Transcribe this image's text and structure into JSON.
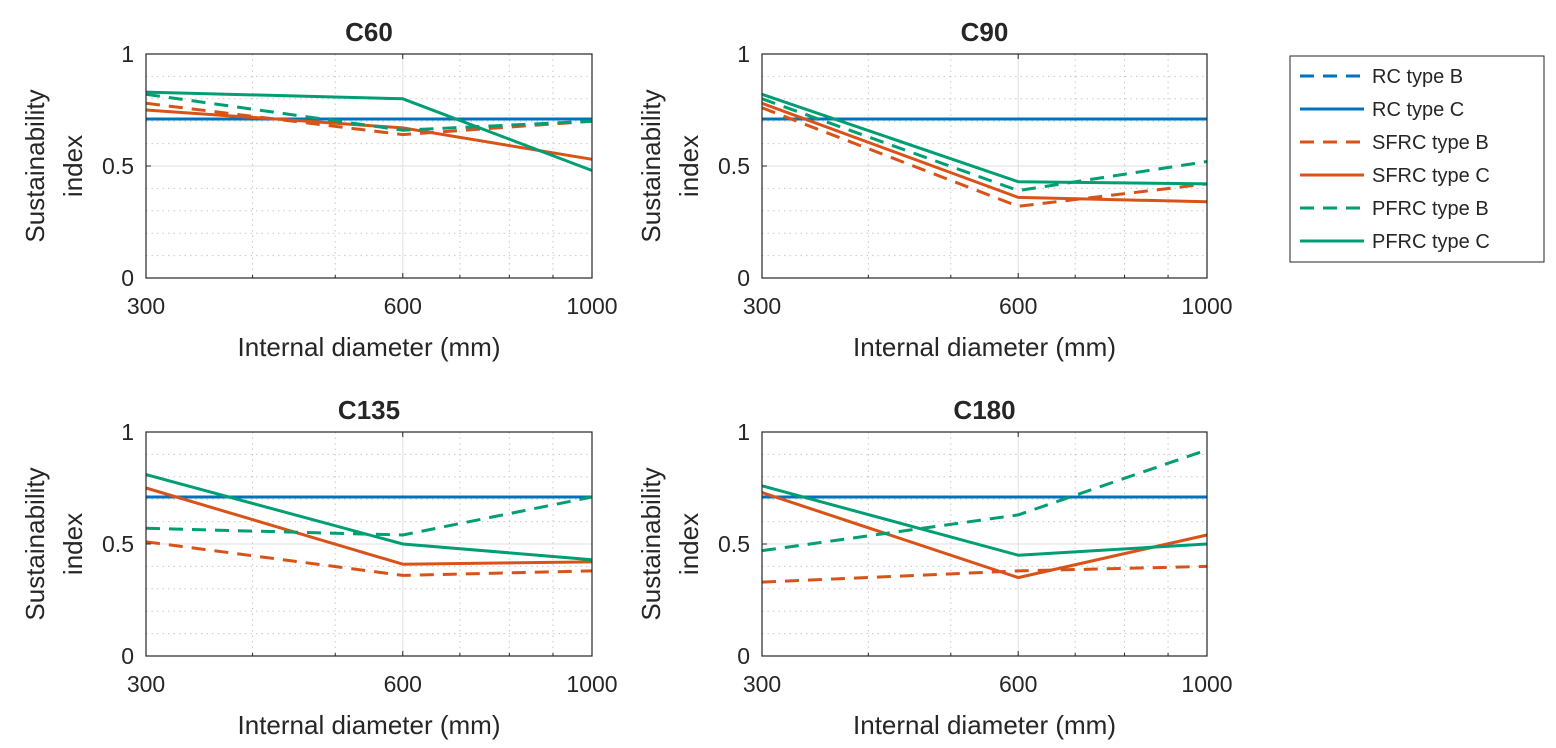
{
  "chart_data": [
    {
      "type": "line",
      "title": "C60",
      "xlabel": "Internal diameter (mm)",
      "ylabel": [
        "Sustainability",
        "index"
      ],
      "x": [
        300,
        600,
        1000
      ],
      "xlim": [
        300,
        1000
      ],
      "ylim": [
        0,
        1
      ],
      "xticks": [
        "300",
        "600",
        "1000"
      ],
      "yticks": [
        "0",
        "0.5",
        "1"
      ],
      "grid": true,
      "series": [
        {
          "name": "RC type B",
          "values": [
            0.71,
            0.71,
            0.71
          ]
        },
        {
          "name": "RC type C",
          "values": [
            0.71,
            0.71,
            0.71
          ]
        },
        {
          "name": "SFRC type B",
          "values": [
            0.78,
            0.64,
            0.7
          ]
        },
        {
          "name": "SFRC type C",
          "values": [
            0.75,
            0.67,
            0.53
          ]
        },
        {
          "name": "PFRC type B",
          "values": [
            0.82,
            0.66,
            0.7
          ]
        },
        {
          "name": "PFRC type C",
          "values": [
            0.83,
            0.8,
            0.48
          ]
        }
      ]
    },
    {
      "type": "line",
      "title": "C90",
      "xlabel": "Internal diameter (mm)",
      "ylabel": [
        "Sustainability",
        "index"
      ],
      "x": [
        300,
        600,
        1000
      ],
      "xlim": [
        300,
        1000
      ],
      "ylim": [
        0,
        1
      ],
      "xticks": [
        "300",
        "600",
        "1000"
      ],
      "yticks": [
        "0",
        "0.5",
        "1"
      ],
      "grid": true,
      "series": [
        {
          "name": "RC type B",
          "values": [
            0.71,
            0.71,
            0.71
          ]
        },
        {
          "name": "RC type C",
          "values": [
            0.71,
            0.71,
            0.71
          ]
        },
        {
          "name": "SFRC type B",
          "values": [
            0.76,
            0.32,
            0.42
          ]
        },
        {
          "name": "SFRC type C",
          "values": [
            0.78,
            0.36,
            0.34
          ]
        },
        {
          "name": "PFRC type B",
          "values": [
            0.8,
            0.39,
            0.52
          ]
        },
        {
          "name": "PFRC type C",
          "values": [
            0.82,
            0.43,
            0.42
          ]
        }
      ]
    },
    {
      "type": "line",
      "title": "C135",
      "xlabel": "Internal diameter (mm)",
      "ylabel": [
        "Sustainability",
        "index"
      ],
      "x": [
        300,
        600,
        1000
      ],
      "xlim": [
        300,
        1000
      ],
      "ylim": [
        0,
        1
      ],
      "xticks": [
        "300",
        "600",
        "1000"
      ],
      "yticks": [
        "0",
        "0.5",
        "1"
      ],
      "grid": true,
      "series": [
        {
          "name": "RC type B",
          "values": [
            0.71,
            0.71,
            0.71
          ]
        },
        {
          "name": "RC type C",
          "values": [
            0.71,
            0.71,
            0.71
          ]
        },
        {
          "name": "SFRC type B",
          "values": [
            0.51,
            0.36,
            0.38
          ]
        },
        {
          "name": "SFRC type C",
          "values": [
            0.75,
            0.41,
            0.42
          ]
        },
        {
          "name": "PFRC type B",
          "values": [
            0.57,
            0.54,
            0.71
          ]
        },
        {
          "name": "PFRC type C",
          "values": [
            0.81,
            0.5,
            0.43
          ]
        }
      ]
    },
    {
      "type": "line",
      "title": "C180",
      "xlabel": "Internal diameter (mm)",
      "ylabel": [
        "Sustainability",
        "index"
      ],
      "x": [
        300,
        600,
        1000
      ],
      "xlim": [
        300,
        1000
      ],
      "ylim": [
        0,
        1
      ],
      "xticks": [
        "300",
        "600",
        "1000"
      ],
      "yticks": [
        "0",
        "0.5",
        "1"
      ],
      "grid": true,
      "series": [
        {
          "name": "RC type B",
          "values": [
            0.71,
            0.71,
            0.71
          ]
        },
        {
          "name": "RC type C",
          "values": [
            0.71,
            0.71,
            0.71
          ]
        },
        {
          "name": "SFRC type B",
          "values": [
            0.33,
            0.38,
            0.4
          ]
        },
        {
          "name": "SFRC type C",
          "values": [
            0.73,
            0.35,
            0.54
          ]
        },
        {
          "name": "PFRC type B",
          "values": [
            0.47,
            0.63,
            0.92
          ]
        },
        {
          "name": "PFRC type C",
          "values": [
            0.76,
            0.45,
            0.5
          ]
        }
      ]
    }
  ],
  "legend": {
    "placement": "right",
    "entries": [
      {
        "label": "RC type B",
        "color": "#0072BD",
        "dash": "dashed"
      },
      {
        "label": "RC type C",
        "color": "#0072BD",
        "dash": "solid"
      },
      {
        "label": "SFRC type B",
        "color": "#D95319",
        "dash": "dashed"
      },
      {
        "label": "SFRC type C",
        "color": "#D95319",
        "dash": "solid"
      },
      {
        "label": "PFRC type B",
        "color": "#009E73",
        "dash": "dashed"
      },
      {
        "label": "PFRC type C",
        "color": "#009E73",
        "dash": "solid"
      }
    ]
  },
  "colors": {
    "RC": "#0072BD",
    "SFRC": "#D95319",
    "PFRC": "#009E73",
    "axis": "#262626",
    "grid": "#dfdfdf",
    "minor_grid": "#c8c8c8"
  }
}
